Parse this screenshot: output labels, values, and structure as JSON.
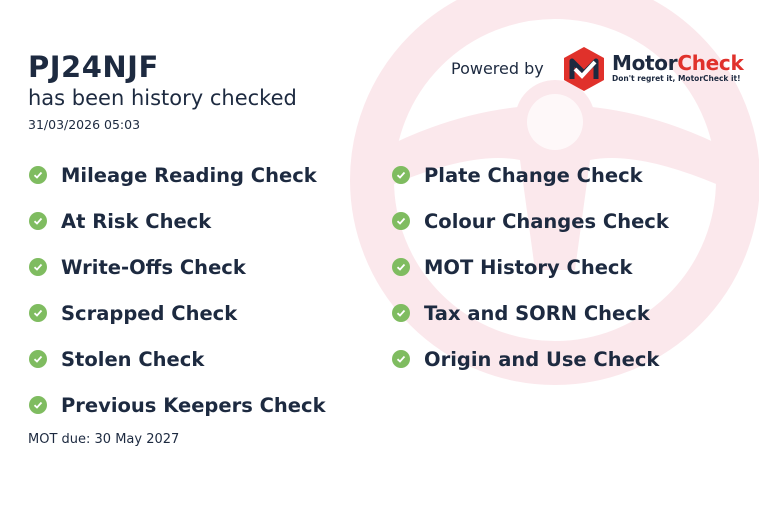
{
  "vehicle": {
    "registration": "PJ24NJF",
    "status": "has been history checked",
    "checked_at": "31/03/2026 05:03"
  },
  "branding": {
    "powered_by": "Powered by",
    "brand_part1": "Motor",
    "brand_part2": "Check",
    "tagline": "Don't regret it, MotorCheck it!",
    "accent": "#e0312b"
  },
  "checks_left": [
    {
      "label": "Mileage Reading Check",
      "icon": "check-circle-icon"
    },
    {
      "label": "At Risk Check",
      "icon": "check-circle-icon"
    },
    {
      "label": "Write-Offs Check",
      "icon": "check-circle-icon"
    },
    {
      "label": "Scrapped Check",
      "icon": "check-circle-icon"
    },
    {
      "label": "Stolen Check",
      "icon": "check-circle-icon"
    },
    {
      "label": "Previous Keepers Check",
      "icon": "check-circle-icon"
    }
  ],
  "checks_right": [
    {
      "label": "Plate Change Check",
      "icon": "check-circle-icon"
    },
    {
      "label": "Colour Changes Check",
      "icon": "check-circle-icon"
    },
    {
      "label": "MOT History Check",
      "icon": "check-circle-icon"
    },
    {
      "label": "Tax and SORN Check",
      "icon": "check-circle-icon"
    },
    {
      "label": "Origin and Use Check",
      "icon": "check-circle-icon"
    }
  ],
  "mot_due": "MOT due: 30 May 2027",
  "colors": {
    "text": "#1d2a40",
    "check": "#7fbc60",
    "watermark": "#fbe8ec"
  }
}
